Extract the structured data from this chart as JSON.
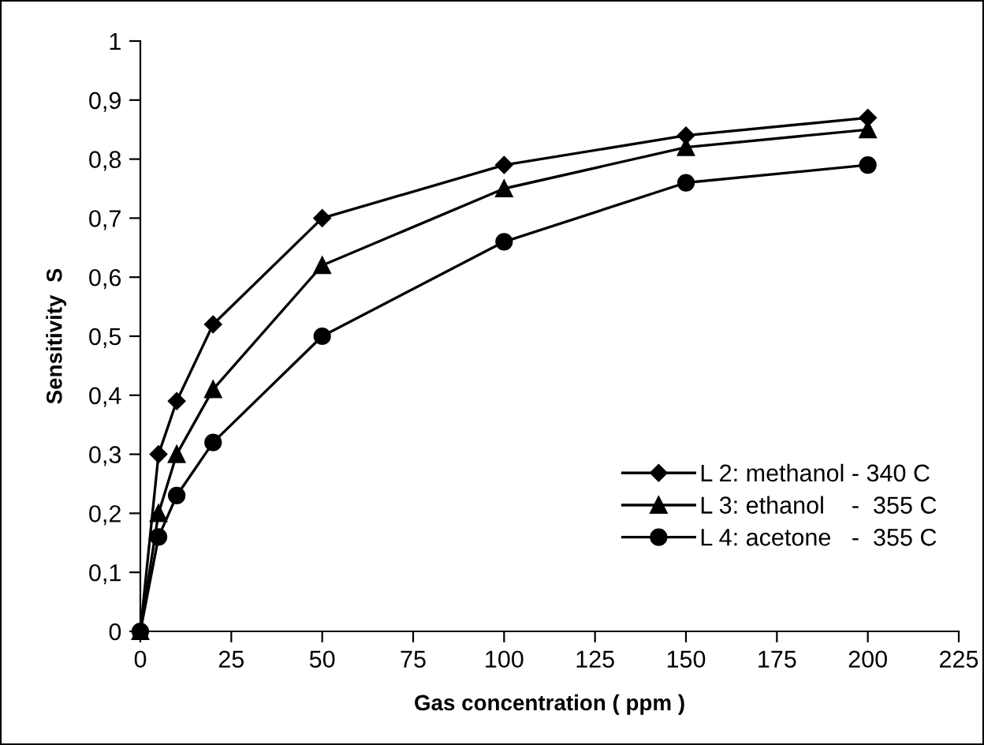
{
  "chart_data": {
    "type": "line",
    "xlabel": "Gas concentration ( ppm )",
    "ylabel": "Sensitivity  S",
    "x": [
      0,
      5,
      10,
      20,
      50,
      100,
      150,
      200
    ],
    "series": [
      {
        "name": "L 2: methanol - 340 C",
        "color": "#000000",
        "marker": "diamond",
        "values": [
          0,
          0.3,
          0.39,
          0.52,
          0.7,
          0.79,
          0.84,
          0.87
        ]
      },
      {
        "name": "L 3: ethanol    -  355 C",
        "color": "#000000",
        "marker": "triangle",
        "values": [
          0,
          0.2,
          0.3,
          0.41,
          0.62,
          0.75,
          0.82,
          0.85
        ]
      },
      {
        "name": "L 4: acetone   -  355 C",
        "color": "#000000",
        "marker": "circle",
        "values": [
          0,
          0.16,
          0.23,
          0.32,
          0.5,
          0.66,
          0.76,
          0.79
        ]
      }
    ],
    "xlim": [
      0,
      225
    ],
    "xticks": [
      0,
      25,
      50,
      75,
      100,
      125,
      150,
      175,
      200,
      225
    ],
    "ylim": [
      0,
      1
    ],
    "yticks": [
      0,
      {
        "value": 0.1,
        "label": "0,1"
      },
      {
        "value": 0.2,
        "label": "0,2"
      },
      {
        "value": 0.3,
        "label": "0,3"
      },
      {
        "value": 0.4,
        "label": "0,4"
      },
      {
        "value": 0.5,
        "label": "0,5"
      },
      {
        "value": 0.6,
        "label": "0,6"
      },
      {
        "value": 0.7,
        "label": "0,7"
      },
      {
        "value": 0.8,
        "label": "0,8"
      },
      {
        "value": 0.9,
        "label": "0,9"
      },
      1
    ],
    "grid": false,
    "legend": "bottom right",
    "line_style": "solid"
  }
}
